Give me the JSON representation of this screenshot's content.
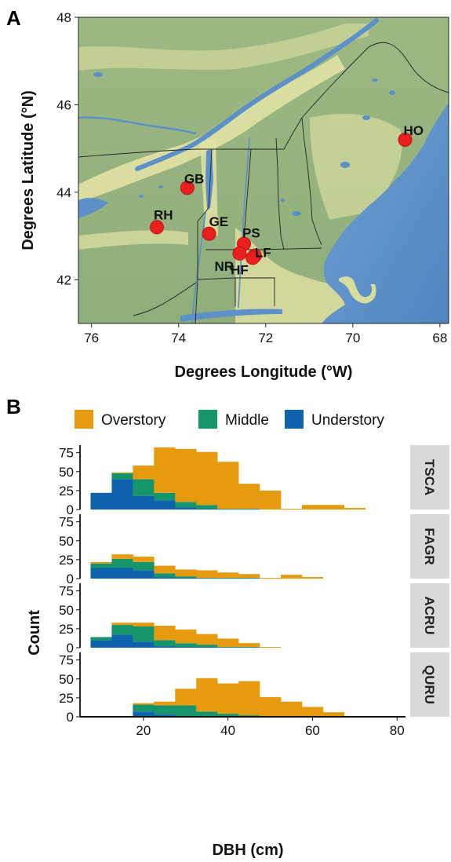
{
  "panel_a": {
    "letter": "A",
    "xlabel": "Degrees Longitude (°W)",
    "ylabel": "Degrees Latitude (°N)",
    "x_ticks": [
      "76",
      "74",
      "72",
      "70",
      "68"
    ],
    "y_ticks": [
      "48",
      "46",
      "44",
      "42"
    ],
    "colors": {
      "land": "#9fb98a",
      "water": "#5b90c8",
      "lowland": "#e3e3a6",
      "site": "#e8211f",
      "border": "#222222"
    }
  },
  "panel_b": {
    "letter": "B",
    "xlabel": "DBH (cm)",
    "ylabel": "Count",
    "legend": [
      "Overstory",
      "Middle",
      "Understory"
    ],
    "x_ticks": [
      "20",
      "40",
      "60",
      "80"
    ],
    "y_ticks": [
      "0",
      "25",
      "50",
      "75"
    ],
    "colors": {
      "Overstory": "#e69a0f",
      "Middle": "#16946b",
      "Understory": "#0e63ac",
      "strip": "#d9d9d9"
    }
  },
  "chart_data": [
    {
      "type": "scatter",
      "x_axis": "longitude_W",
      "y_axis": "latitude_N",
      "xlim": [
        76.3,
        67.8
      ],
      "ylim": [
        41.0,
        48.0
      ],
      "points": [
        {
          "label": "HO",
          "x": 68.8,
          "y": 45.2
        },
        {
          "label": "GB",
          "x": 73.8,
          "y": 44.1
        },
        {
          "label": "RH",
          "x": 74.5,
          "y": 43.2
        },
        {
          "label": "GE",
          "x": 73.3,
          "y": 43.05
        },
        {
          "label": "PS",
          "x": 72.5,
          "y": 42.82
        },
        {
          "label": "NR",
          "x": 72.6,
          "y": 42.6
        },
        {
          "label": "LF",
          "x": 72.25,
          "y": 42.55
        },
        {
          "label": "HF",
          "x": 72.3,
          "y": 42.5
        }
      ]
    },
    {
      "type": "bar",
      "stacked": true,
      "xlabel": "DBH (cm)",
      "ylabel": "Count",
      "xlim": [
        5,
        82
      ],
      "ylim": [
        0,
        85
      ],
      "bin_width": 5,
      "series_order": [
        "Overstory",
        "Middle",
        "Understory"
      ],
      "facets": [
        {
          "name": "TSCA",
          "bins": [
            {
              "x0": 7.5,
              "Understory": 22,
              "Middle": 0,
              "Overstory": 0
            },
            {
              "x0": 12.5,
              "Understory": 40,
              "Middle": 8,
              "Overstory": 1
            },
            {
              "x0": 17.5,
              "Understory": 18,
              "Middle": 22,
              "Overstory": 18
            },
            {
              "x0": 22.5,
              "Understory": 12,
              "Middle": 10,
              "Overstory": 60
            },
            {
              "x0": 27.5,
              "Understory": 3,
              "Middle": 7,
              "Overstory": 70
            },
            {
              "x0": 32.5,
              "Understory": 1,
              "Middle": 5,
              "Overstory": 70
            },
            {
              "x0": 37.5,
              "Understory": 0,
              "Middle": 1,
              "Overstory": 62
            },
            {
              "x0": 42.5,
              "Understory": 0,
              "Middle": 1,
              "Overstory": 33
            },
            {
              "x0": 47.5,
              "Understory": 0,
              "Middle": 0,
              "Overstory": 25
            },
            {
              "x0": 52.5,
              "Understory": 0,
              "Middle": 0,
              "Overstory": 1
            },
            {
              "x0": 57.5,
              "Understory": 0,
              "Middle": 0,
              "Overstory": 6
            },
            {
              "x0": 62.5,
              "Understory": 0,
              "Middle": 0,
              "Overstory": 6
            },
            {
              "x0": 67.5,
              "Understory": 0,
              "Middle": 0,
              "Overstory": 2
            }
          ]
        },
        {
          "name": "FAGR",
          "bins": [
            {
              "x0": 7.5,
              "Understory": 14,
              "Middle": 6,
              "Overstory": 2
            },
            {
              "x0": 12.5,
              "Understory": 14,
              "Middle": 12,
              "Overstory": 6
            },
            {
              "x0": 17.5,
              "Understory": 11,
              "Middle": 11,
              "Overstory": 7
            },
            {
              "x0": 22.5,
              "Understory": 2,
              "Middle": 5,
              "Overstory": 10
            },
            {
              "x0": 27.5,
              "Understory": 1,
              "Middle": 2,
              "Overstory": 9
            },
            {
              "x0": 32.5,
              "Understory": 0,
              "Middle": 1,
              "Overstory": 10
            },
            {
              "x0": 37.5,
              "Understory": 0,
              "Middle": 1,
              "Overstory": 7
            },
            {
              "x0": 42.5,
              "Understory": 0,
              "Middle": 1,
              "Overstory": 5
            },
            {
              "x0": 47.5,
              "Understory": 0,
              "Middle": 0,
              "Overstory": 1
            },
            {
              "x0": 52.5,
              "Understory": 0,
              "Middle": 0,
              "Overstory": 5
            },
            {
              "x0": 57.5,
              "Understory": 0,
              "Middle": 0,
              "Overstory": 2
            }
          ]
        },
        {
          "name": "ACRU",
          "bins": [
            {
              "x0": 7.5,
              "Understory": 10,
              "Middle": 4,
              "Overstory": 0
            },
            {
              "x0": 12.5,
              "Understory": 17,
              "Middle": 13,
              "Overstory": 3
            },
            {
              "x0": 17.5,
              "Understory": 8,
              "Middle": 20,
              "Overstory": 5
            },
            {
              "x0": 22.5,
              "Understory": 2,
              "Middle": 8,
              "Overstory": 19
            },
            {
              "x0": 27.5,
              "Understory": 1,
              "Middle": 5,
              "Overstory": 18
            },
            {
              "x0": 32.5,
              "Understory": 1,
              "Middle": 3,
              "Overstory": 14
            },
            {
              "x0": 37.5,
              "Understory": 0,
              "Middle": 1,
              "Overstory": 11
            },
            {
              "x0": 42.5,
              "Understory": 0,
              "Middle": 1,
              "Overstory": 5
            },
            {
              "x0": 47.5,
              "Understory": 0,
              "Middle": 0,
              "Overstory": 1
            }
          ]
        },
        {
          "name": "QURU",
          "bins": [
            {
              "x0": 17.5,
              "Understory": 7,
              "Middle": 9,
              "Overstory": 2
            },
            {
              "x0": 22.5,
              "Understory": 3,
              "Middle": 12,
              "Overstory": 5
            },
            {
              "x0": 27.5,
              "Understory": 1,
              "Middle": 14,
              "Overstory": 22
            },
            {
              "x0": 32.5,
              "Understory": 0,
              "Middle": 7,
              "Overstory": 44
            },
            {
              "x0": 37.5,
              "Understory": 0,
              "Middle": 4,
              "Overstory": 40
            },
            {
              "x0": 42.5,
              "Understory": 0,
              "Middle": 2,
              "Overstory": 45
            },
            {
              "x0": 47.5,
              "Understory": 0,
              "Middle": 1,
              "Overstory": 25
            },
            {
              "x0": 52.5,
              "Understory": 0,
              "Middle": 0,
              "Overstory": 20
            },
            {
              "x0": 57.5,
              "Understory": 0,
              "Middle": 0,
              "Overstory": 13
            },
            {
              "x0": 62.5,
              "Understory": 0,
              "Middle": 0,
              "Overstory": 6
            }
          ]
        }
      ]
    }
  ]
}
